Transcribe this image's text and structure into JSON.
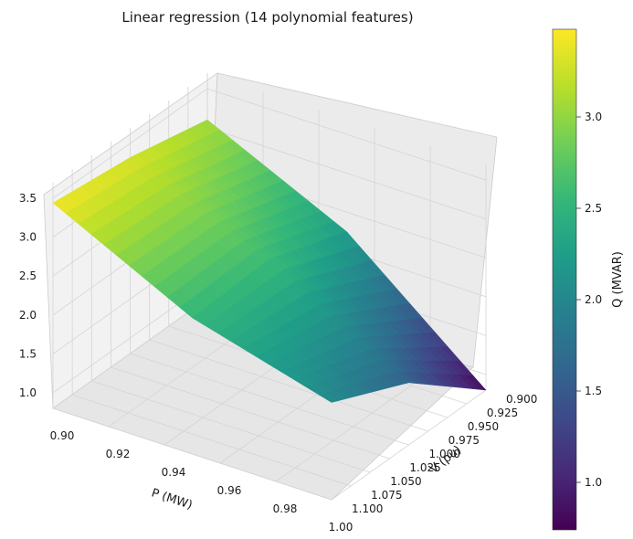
{
  "chart_data": {
    "type": "surface",
    "title": "Linear regression (14 polynomial features)",
    "xlabel": "P (MW)",
    "ylabel": "V (pu)",
    "zlabel": "Q (MVAR)",
    "colorbar_label": "Q (MVAR)",
    "colormap": "viridis",
    "x_ticks": [
      "0.90",
      "0.92",
      "0.94",
      "0.96",
      "0.98",
      "1.00"
    ],
    "y_ticks": [
      "0.900",
      "0.925",
      "0.950",
      "0.975",
      "1.000",
      "1.025",
      "1.050",
      "1.075",
      "1.100"
    ],
    "z_ticks": [
      "1.0",
      "1.5",
      "2.0",
      "2.5",
      "3.0",
      "3.5"
    ],
    "colorbar_ticks": [
      "1.0",
      "1.5",
      "2.0",
      "2.5",
      "3.0"
    ],
    "xlim": [
      0.9,
      1.0
    ],
    "ylim": [
      0.9,
      1.1
    ],
    "zlim": [
      0.8,
      3.7
    ],
    "color_range": [
      0.74,
      3.48
    ],
    "surface_samples": [
      {
        "p": 0.9,
        "v": 0.9,
        "q": 3.1
      },
      {
        "p": 0.9,
        "v": 1.0,
        "q": 3.32
      },
      {
        "p": 0.9,
        "v": 1.1,
        "q": 3.44
      },
      {
        "p": 0.95,
        "v": 0.9,
        "q": 2.25
      },
      {
        "p": 0.95,
        "v": 1.0,
        "q": 2.6
      },
      {
        "p": 0.95,
        "v": 1.1,
        "q": 2.55
      },
      {
        "p": 1.0,
        "v": 0.9,
        "q": 0.8
      },
      {
        "p": 1.0,
        "v": 1.0,
        "q": 1.6
      },
      {
        "p": 1.0,
        "v": 1.1,
        "q": 2.05
      }
    ]
  },
  "colors": {
    "viridis": [
      "#440154",
      "#482878",
      "#3e4989",
      "#31688e",
      "#26828e",
      "#1f9e89",
      "#35b779",
      "#6ece58",
      "#b5de2b",
      "#fde725"
    ]
  }
}
